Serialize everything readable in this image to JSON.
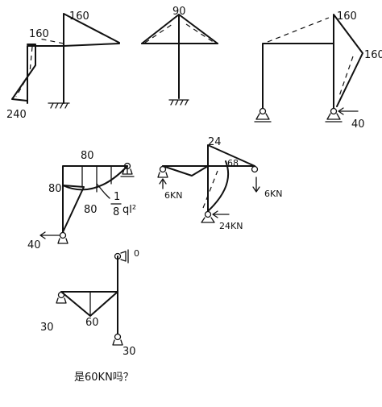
{
  "diagram_a": {
    "labels": [
      "160",
      "160",
      "240"
    ]
  },
  "diagram_b": {
    "labels": [
      "90"
    ]
  },
  "diagram_c": {
    "labels": [
      "160",
      "160",
      "40"
    ]
  },
  "diagram_d": {
    "labels": [
      "80",
      "80",
      "80",
      "1",
      "8",
      "ql²",
      "40"
    ]
  },
  "diagram_e": {
    "labels": [
      "24",
      "68",
      "6KN",
      "6KN",
      "24KN"
    ]
  },
  "diagram_f": {
    "labels": [
      "0",
      "30",
      "60",
      "30"
    ]
  },
  "note": {
    "text": "是60KN吗？"
  }
}
